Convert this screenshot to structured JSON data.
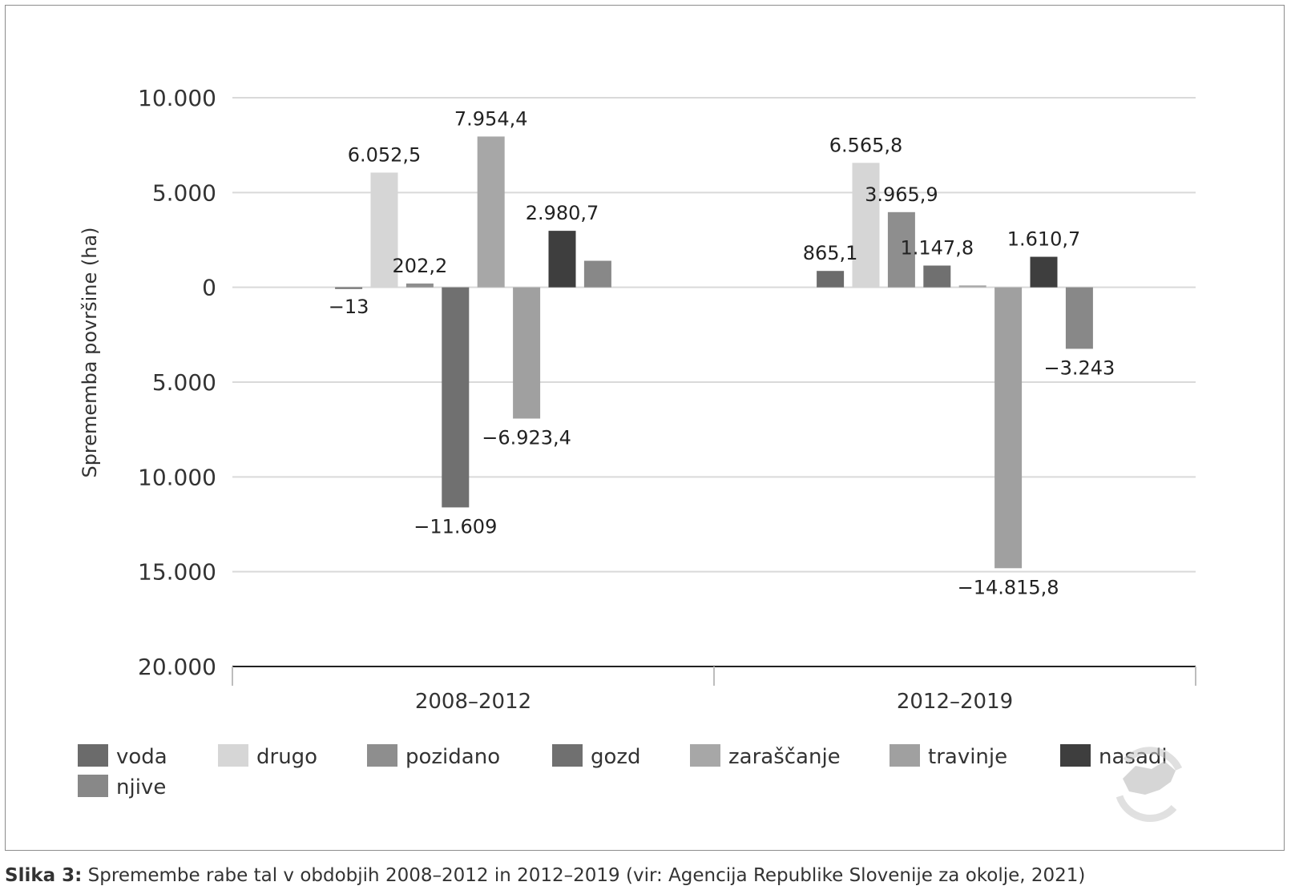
{
  "chart_data": {
    "type": "bar",
    "ylabel": "Sprememba površine (ha)",
    "ylim": [
      -20000,
      10000
    ],
    "y_ticks": [
      10000,
      5000,
      0,
      -5000,
      -10000,
      -15000,
      -20000
    ],
    "y_tick_labels": [
      "10.000",
      "5.000",
      "0",
      "5.000",
      "10.000",
      "15.000",
      "20.000"
    ],
    "categories": [
      "2008–2012",
      "2012–2019"
    ],
    "grid": true,
    "legend_position": "bottom",
    "series": [
      {
        "name": "voda",
        "color": "#6b6b6b",
        "values": [
          -13,
          865.1
        ],
        "labels": [
          "−13",
          "865,1"
        ]
      },
      {
        "name": "drugo",
        "color": "#d6d6d6",
        "values": [
          6052.5,
          6565.8
        ],
        "labels": [
          "6.052,5",
          "6.565,8"
        ]
      },
      {
        "name": "pozidano",
        "color": "#8e8e8e",
        "values": [
          202.2,
          3965.9
        ],
        "labels": [
          "202,2",
          "3.965,9"
        ]
      },
      {
        "name": "gozd",
        "color": "#707070",
        "values": [
          -11609,
          1147.8
        ],
        "labels": [
          "−11.609",
          "1.147,8"
        ]
      },
      {
        "name": "zaraščanje",
        "color": "#a7a7a7",
        "values": [
          7954.4,
          100
        ],
        "labels": [
          "7.954,4",
          ""
        ]
      },
      {
        "name": "travinje",
        "color": "#a0a0a0",
        "values": [
          -6923.4,
          -14815.8
        ],
        "labels": [
          "−6.923,4",
          "−14.815,8"
        ]
      },
      {
        "name": "nasadi",
        "color": "#3e3e3e",
        "values": [
          2980.7,
          1610.7
        ],
        "labels": [
          "2.980,7",
          "1.610,7"
        ]
      },
      {
        "name": "njive",
        "color": "#888888",
        "values": [
          1400,
          -3243
        ],
        "labels": [
          "",
          "−3.243"
        ]
      }
    ]
  },
  "caption": {
    "prefix": "Slika 3:",
    "text": " Spremembe rabe tal v obdobjih 2008–2012 in 2012–2019 (vir: Agencija Republike Slovenije za okolje, 2021)"
  }
}
